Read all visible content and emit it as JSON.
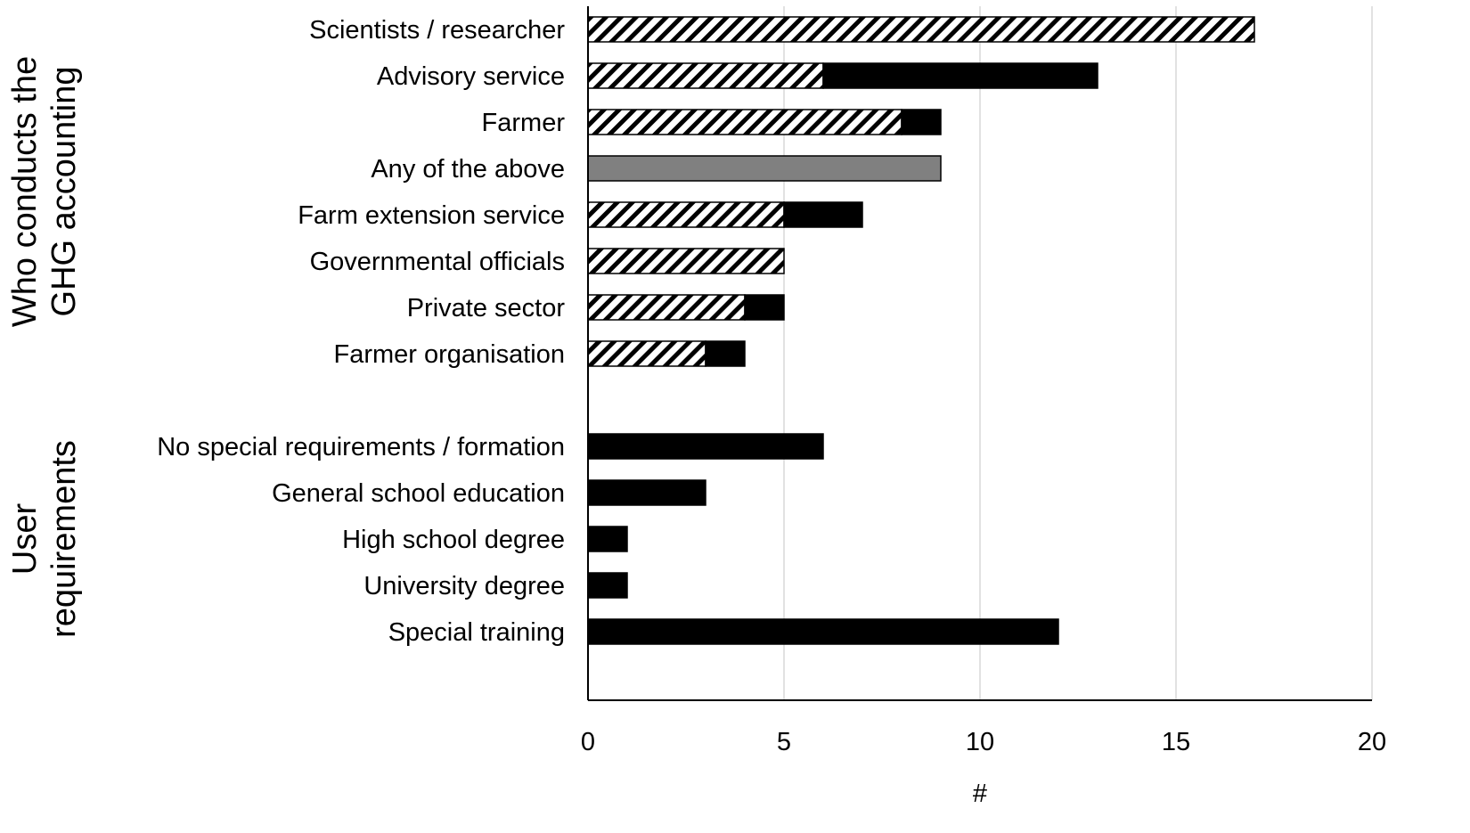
{
  "chart_data": {
    "type": "bar",
    "orientation": "horizontal",
    "stacked": true,
    "xlabel": "#",
    "xlim": [
      0,
      20
    ],
    "xticks": [
      0,
      5,
      10,
      15,
      20
    ],
    "grid": true,
    "legend": "none",
    "groups": [
      {
        "label_lines": [
          "Who conducts the",
          "GHG accounting"
        ],
        "categories": [
          "Scientists / researcher",
          "Advisory service",
          "Farmer",
          "Any of the above",
          "Farm extension service",
          "Governmental officials",
          "Private sector",
          "Farmer organisation"
        ]
      },
      {
        "label_lines": [
          "User",
          "requirements"
        ],
        "categories": [
          "No special requirements / formation",
          "General school education",
          "High school degree",
          "University degree",
          "Special training"
        ]
      }
    ],
    "series": [
      {
        "style": "hatched",
        "color": "#000000",
        "values": [
          17,
          6,
          8,
          0,
          5,
          5,
          4,
          3,
          0,
          0,
          0,
          0,
          0
        ]
      },
      {
        "style": "solid",
        "color": "#000000",
        "values": [
          0,
          7,
          1,
          0,
          2,
          0,
          1,
          1,
          6,
          3,
          1,
          1,
          12
        ]
      },
      {
        "style": "solid",
        "color": "#808080",
        "values": [
          0,
          0,
          0,
          9,
          0,
          0,
          0,
          0,
          0,
          0,
          0,
          0,
          0
        ]
      }
    ]
  }
}
